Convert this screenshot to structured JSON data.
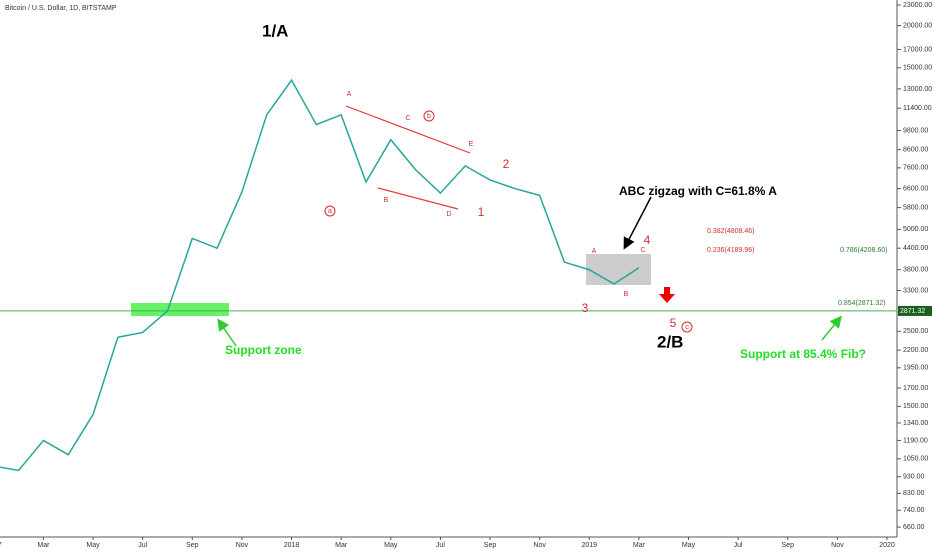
{
  "chart_data": {
    "type": "line",
    "title": "Bitcoin / U.S. Dollar, 1D, BITSTAMP",
    "log_scale": true,
    "grid": false,
    "x": [
      "2017-01",
      "2017-02",
      "2017-03",
      "2017-04",
      "2017-05",
      "2017-06",
      "2017-07",
      "2017-08",
      "2017-09",
      "2017-10",
      "2017-11",
      "2017-12",
      "2018-01",
      "2018-02",
      "2018-03",
      "2018-04",
      "2018-05",
      "2018-06",
      "2018-07",
      "2018-08",
      "2018-09",
      "2018-10",
      "2018-11",
      "2018-12",
      "2019-01",
      "2019-02",
      "2019-03"
    ],
    "series": [
      {
        "color": "#26a69a",
        "values": [
          1000,
          970,
          1190,
          1080,
          1420,
          2400,
          2480,
          2870,
          4700,
          4400,
          6450,
          10900,
          13800,
          10200,
          10900,
          6900,
          9200,
          7500,
          6400,
          7700,
          7000,
          6600,
          6300,
          4000,
          3800,
          3450,
          3850
        ]
      }
    ],
    "xlim": [
      "2016-12",
      "2020-01"
    ],
    "xticks": [
      {
        "value": "2017-01",
        "label": "2017"
      },
      {
        "value": "2017-03",
        "label": "Mar"
      },
      {
        "value": "2017-05",
        "label": "May"
      },
      {
        "value": "2017-07",
        "label": "Jul"
      },
      {
        "value": "2017-09",
        "label": "Sep"
      },
      {
        "value": "2017-11",
        "label": "Nov"
      },
      {
        "value": "2018-01",
        "label": "2018"
      },
      {
        "value": "2018-03",
        "label": "Mar"
      },
      {
        "value": "2018-05",
        "label": "May"
      },
      {
        "value": "2018-07",
        "label": "Jul"
      },
      {
        "value": "2018-09",
        "label": "Sep"
      },
      {
        "value": "2018-11",
        "label": "Nov"
      },
      {
        "value": "2019-01",
        "label": "2019"
      },
      {
        "value": "2019-03",
        "label": "Mar"
      },
      {
        "value": "2019-05",
        "label": "May"
      },
      {
        "value": "2019-07",
        "label": "Jul"
      },
      {
        "value": "2019-09",
        "label": "Sep"
      },
      {
        "value": "2019-11",
        "label": "Nov"
      },
      {
        "value": "2020-01",
        "label": "2020"
      }
    ],
    "ylim": [
      617,
      23800
    ],
    "yticks": [
      {
        "value": 660,
        "label": "660.00"
      },
      {
        "value": 740,
        "label": "740.00"
      },
      {
        "value": 830,
        "label": "830.00"
      },
      {
        "value": 930,
        "label": "930.00"
      },
      {
        "value": 1050,
        "label": "1050.00"
      },
      {
        "value": 1190,
        "label": "1190.00"
      },
      {
        "value": 1340,
        "label": "1340.00"
      },
      {
        "value": 1500,
        "label": "1500.00"
      },
      {
        "value": 1700,
        "label": "1700.00"
      },
      {
        "value": 1950,
        "label": "1950.00"
      },
      {
        "value": 2200,
        "label": "2200.00"
      },
      {
        "value": 2500,
        "label": "2500.00"
      },
      {
        "value": 3300,
        "label": "3300.00"
      },
      {
        "value": 3800,
        "label": "3800.00"
      },
      {
        "value": 4400,
        "label": "4400.00"
      },
      {
        "value": 5000,
        "label": "5000.00"
      },
      {
        "value": 5800,
        "label": "5800.00"
      },
      {
        "value": 6600,
        "label": "6600.00"
      },
      {
        "value": 7600,
        "label": "7600.00"
      },
      {
        "value": 8600,
        "label": "8600.00"
      },
      {
        "value": 9800,
        "label": "9800.00"
      },
      {
        "value": 11400,
        "label": "11400.00"
      },
      {
        "value": 13000,
        "label": "13000.00"
      },
      {
        "value": 15000,
        "label": "15000.00"
      },
      {
        "value": 17000,
        "label": "17000.00"
      },
      {
        "value": 20000,
        "label": "20000.00"
      },
      {
        "value": 23000,
        "label": "23000.00"
      }
    ],
    "hline": {
      "value": 2871.32,
      "label": "2871.32",
      "color": "#4caf50"
    },
    "annotations": [
      "1/A",
      "2/B",
      "a",
      "b",
      "c",
      "A",
      "B",
      "C",
      "D",
      "E",
      "1",
      "2",
      "3",
      "4",
      "5",
      "A",
      "B",
      "C",
      "ABC zigzag with C=61.8% A",
      "Support zone",
      "Support at 85.4% Fib?",
      "0.382(4808.46)",
      "0.236(4189.96)",
      "0.786(4208.60)",
      "0.854(2871.32)"
    ]
  }
}
